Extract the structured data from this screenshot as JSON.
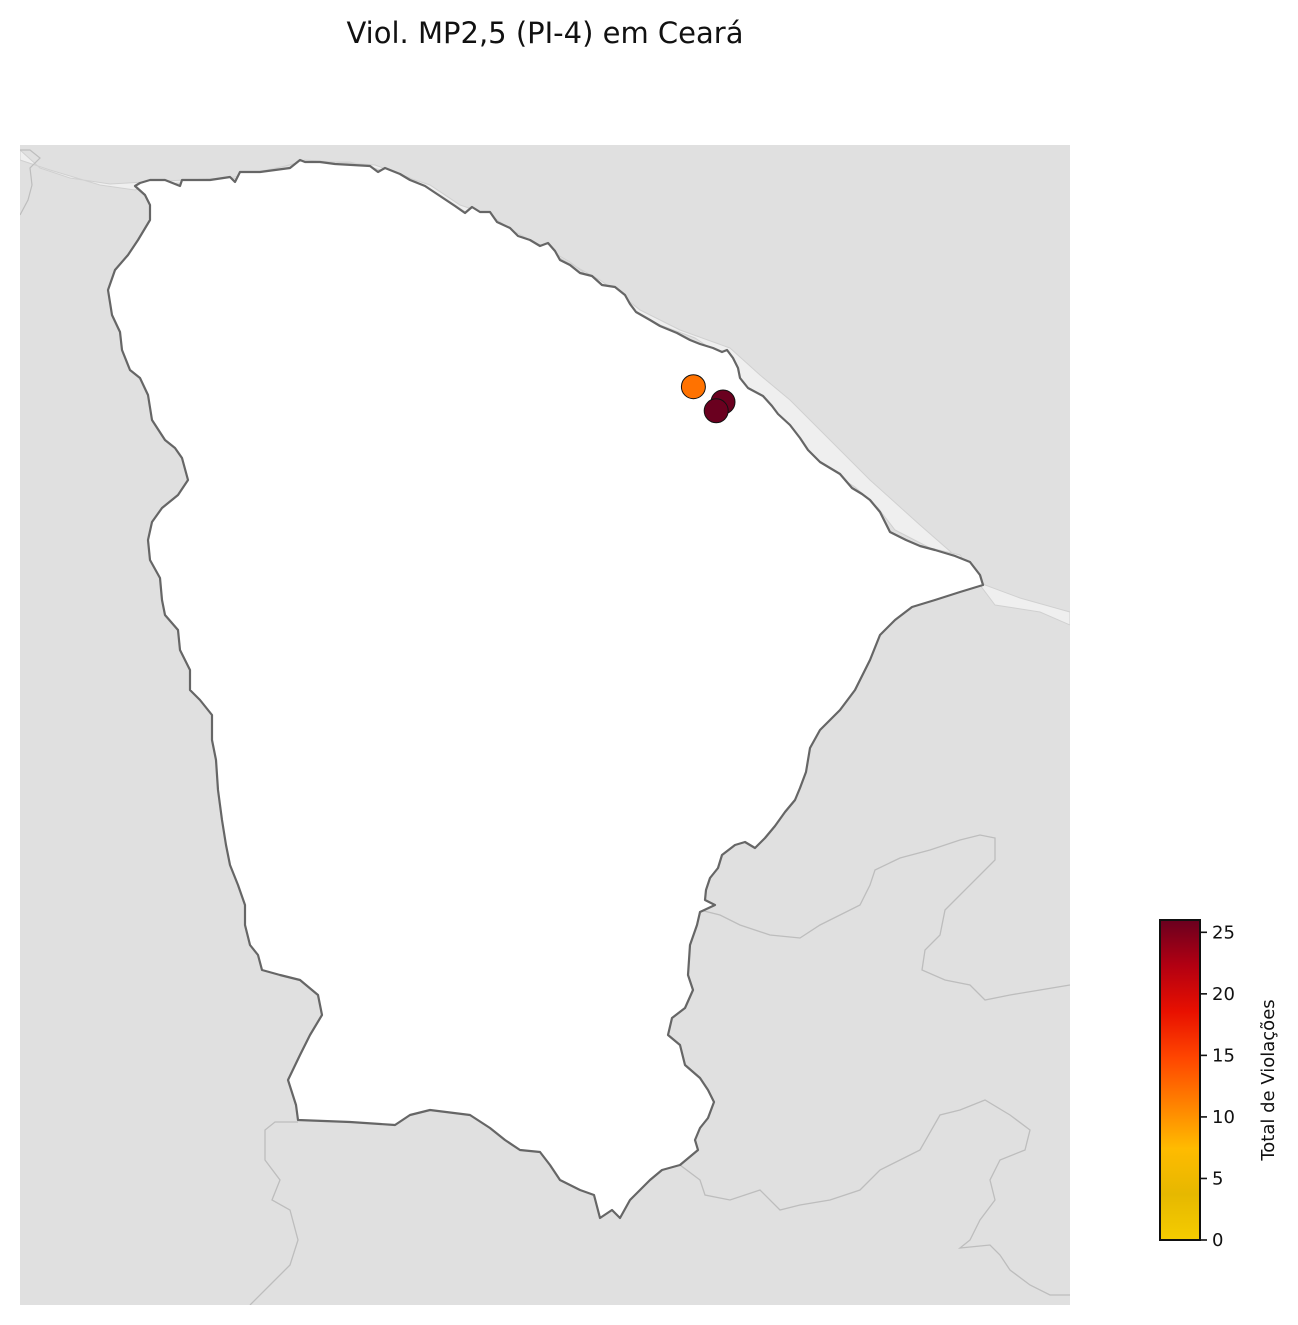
{
  "title": "Viol. MP2,5 (PI-4) em Ceará",
  "colors": {
    "background_land": "#e0e0e0",
    "state_fill": "#ffffff",
    "state_border": "#666666",
    "neighbor_border": "#bdbdbd",
    "coastal_strip": "#efefef"
  },
  "colorbar": {
    "label": "Total de Violações",
    "min": 0,
    "max": 26,
    "ticks": [
      0,
      5,
      10,
      15,
      20,
      25
    ],
    "gradient_stops": [
      "#f5cc00",
      "#e6b800",
      "#ffbb00",
      "#ff8000",
      "#ff4500",
      "#e81000",
      "#b30012",
      "#6a001f"
    ]
  },
  "chart_data": {
    "type": "scatter",
    "title": "Viol. MP2,5 (PI-4) em Ceará",
    "value_label": "Total de Violações",
    "stations": [
      {
        "lon": -38.65,
        "lat": -3.72,
        "value": 12
      },
      {
        "lon": -38.52,
        "lat": -3.79,
        "value": 26
      },
      {
        "lon": -38.55,
        "lat": -3.83,
        "value": 26
      }
    ]
  }
}
